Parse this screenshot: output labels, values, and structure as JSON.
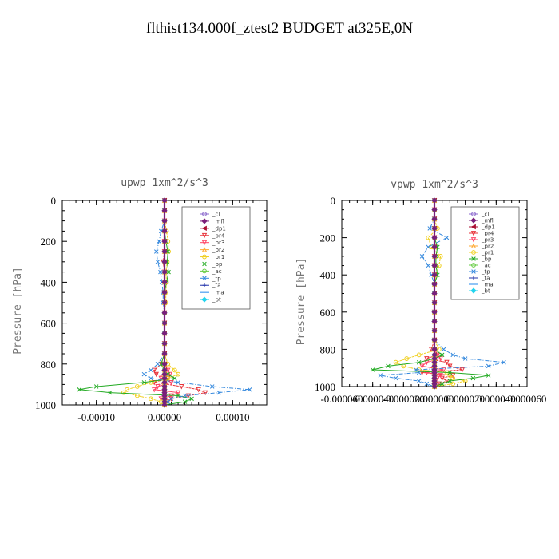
{
  "title": "flthist134.000f_ztest2  BUDGET at325E,0N",
  "chart_data": [
    {
      "type": "line",
      "title": "upwp   1xm^2/s^3",
      "ylabel": "Pressure [hPa]",
      "xlabel": "",
      "xlim": [
        -0.00015,
        0.00015
      ],
      "ylim": [
        1000,
        0
      ],
      "yticks": [
        0,
        200,
        400,
        600,
        800,
        1000
      ],
      "xticks": [
        -0.0001,
        0.0,
        0.0001
      ],
      "xtick_labels": [
        "-0.00010",
        "0.00000",
        "0.00010"
      ],
      "legend_position": "top-right",
      "pressure": [
        0,
        50,
        100,
        150,
        200,
        250,
        300,
        350,
        400,
        450,
        500,
        550,
        600,
        650,
        700,
        750,
        800,
        830,
        850,
        870,
        890,
        910,
        925,
        940,
        955,
        970,
        985,
        1000
      ],
      "series": [
        {
          "name": "_cl",
          "color": "#8866cc",
          "values": [
            0,
            0,
            0,
            0,
            0,
            0,
            0,
            0,
            0,
            0,
            0,
            0,
            0,
            0,
            0,
            0,
            0,
            0,
            0,
            0,
            0,
            0,
            0,
            0,
            0,
            0,
            0,
            0
          ]
        },
        {
          "name": "_mfl",
          "color": "#7a1f7a",
          "values": [
            0,
            0,
            0,
            0,
            0,
            0,
            0,
            0,
            0,
            0,
            0,
            0,
            0,
            0,
            0,
            0,
            0,
            0,
            0,
            0,
            0,
            0,
            0,
            0,
            0,
            0,
            0,
            0
          ]
        },
        {
          "name": "_dp1",
          "color": "#aa1133",
          "values": [
            0,
            0,
            0,
            0,
            0,
            0,
            0,
            0,
            0,
            0,
            0,
            0,
            0,
            0,
            0,
            0,
            0,
            0,
            0,
            0,
            0,
            0,
            0,
            0,
            0,
            0,
            0,
            0
          ]
        },
        {
          "name": "_pr4",
          "color": "#e8333a",
          "values": [
            0,
            0,
            0,
            0,
            0,
            0,
            -2e-06,
            0,
            0,
            0,
            0,
            0,
            0,
            0,
            0,
            0,
            -5e-06,
            -1.5e-05,
            -1.2e-05,
            5e-06,
            -1.5e-05,
            2.5e-05,
            5e-05,
            6e-05,
            3.5e-05,
            1e-05,
            5e-06,
            0
          ]
        },
        {
          "name": "_pr3",
          "color": "#ff4466",
          "values": [
            0,
            0,
            0,
            0,
            0,
            0,
            0,
            0,
            0,
            0,
            0,
            0,
            0,
            0,
            0,
            0,
            0,
            5e-06,
            8e-06,
            -5e-06,
            1e-05,
            -1e-05,
            -1.5e-05,
            2e-05,
            1e-05,
            -5e-06,
            0,
            0
          ]
        },
        {
          "name": "_pr2",
          "color": "#ffaa33",
          "values": [
            0,
            0,
            0,
            0,
            0,
            0,
            0,
            0,
            0,
            0,
            0,
            0,
            0,
            0,
            0,
            0,
            0,
            0,
            0,
            0,
            0,
            0,
            0,
            0,
            0,
            0,
            0,
            0
          ]
        },
        {
          "name": "_pr1",
          "color": "#f0d020",
          "values": [
            0,
            0,
            0,
            3e-06,
            5e-06,
            6e-06,
            4e-06,
            2e-06,
            3e-06,
            2e-06,
            2e-06,
            0,
            0,
            0,
            0,
            0,
            5e-06,
            1.5e-05,
            2e-05,
            5e-06,
            -2e-05,
            -4e-05,
            -5.5e-05,
            -6e-05,
            -4e-05,
            -2e-05,
            -5e-06,
            0
          ]
        },
        {
          "name": "_bp",
          "color": "#22aa22",
          "values": [
            0,
            0,
            0,
            0,
            2e-06,
            5e-06,
            4e-06,
            6e-06,
            3e-06,
            0,
            0,
            0,
            0,
            0,
            0,
            0,
            -5e-06,
            0,
            5e-06,
            1.5e-05,
            -3e-05,
            -0.0001,
            -0.000125,
            -8e-05,
            2e-05,
            4e-05,
            3e-05,
            0
          ]
        },
        {
          "name": "_ac",
          "color": "#66cc44",
          "values": [
            0,
            0,
            0,
            0,
            0,
            0,
            0,
            0,
            0,
            0,
            0,
            0,
            0,
            0,
            0,
            0,
            0,
            0,
            0,
            0,
            0,
            0,
            0,
            0,
            0,
            0,
            0,
            0
          ]
        },
        {
          "name": "_tp",
          "color": "#3388dd",
          "values": [
            0,
            0,
            0,
            -5e-06,
            -8e-06,
            -1.2e-05,
            -1e-05,
            -6e-06,
            -4e-06,
            -2e-06,
            -2e-06,
            0,
            0,
            0,
            0,
            0,
            -1e-05,
            -2e-05,
            -3e-05,
            -2e-05,
            2e-05,
            7e-05,
            0.000125,
            8e-05,
            3e-05,
            1e-05,
            5e-06,
            0
          ]
        },
        {
          "name": "_ta",
          "color": "#2233aa",
          "values": [
            0,
            0,
            0,
            0,
            0,
            0,
            0,
            0,
            0,
            0,
            0,
            0,
            0,
            0,
            0,
            0,
            0,
            0,
            0,
            0,
            0,
            0,
            0,
            0,
            0,
            0,
            0,
            0
          ]
        },
        {
          "name": "_ma",
          "color": "#2288ee",
          "values": [
            0,
            0,
            0,
            0,
            0,
            0,
            0,
            0,
            0,
            0,
            0,
            0,
            0,
            0,
            0,
            0,
            0,
            0,
            0,
            0,
            0,
            0,
            0,
            0,
            0,
            0,
            0,
            0
          ]
        },
        {
          "name": "_bt",
          "color": "#22d4ee",
          "values": [
            0,
            0,
            0,
            0,
            0,
            0,
            0,
            0,
            0,
            0,
            0,
            0,
            0,
            0,
            0,
            0,
            0,
            0,
            0,
            0,
            0,
            0,
            0,
            0,
            0,
            0,
            0,
            0
          ]
        }
      ]
    },
    {
      "type": "line",
      "title": "vpwp   1xm^2/s^3",
      "ylabel": "Pressure [hPa]",
      "xlabel": "",
      "xlim": [
        -6e-05,
        6e-05
      ],
      "ylim": [
        1000,
        0
      ],
      "yticks": [
        0,
        200,
        400,
        600,
        800,
        1000
      ],
      "xticks": [
        -6e-05,
        -4e-05,
        -2e-05,
        0.0,
        2e-05,
        4e-05,
        6e-05
      ],
      "xtick_labels": [
        "-0.000060",
        "-0.000040",
        "-0.000020",
        "0.000000",
        "0.000020",
        "0.000040",
        "0.000060"
      ],
      "legend_position": "top-right",
      "pressure": [
        0,
        50,
        100,
        150,
        200,
        250,
        300,
        350,
        400,
        450,
        500,
        550,
        600,
        650,
        700,
        750,
        800,
        830,
        850,
        870,
        890,
        910,
        925,
        940,
        955,
        970,
        985,
        1000
      ],
      "series": [
        {
          "name": "_cl",
          "color": "#8866cc",
          "values": [
            0,
            0,
            0,
            0,
            0,
            0,
            0,
            0,
            0,
            0,
            0,
            0,
            0,
            0,
            0,
            0,
            0,
            0,
            0,
            0,
            0,
            0,
            0,
            0,
            0,
            0,
            0,
            0
          ]
        },
        {
          "name": "_mfl",
          "color": "#7a1f7a",
          "values": [
            0,
            0,
            0,
            0,
            0,
            0,
            0,
            0,
            0,
            0,
            0,
            0,
            0,
            0,
            0,
            0,
            0,
            0,
            0,
            0,
            0,
            0,
            0,
            0,
            0,
            0,
            0,
            0
          ]
        },
        {
          "name": "_dp1",
          "color": "#aa1133",
          "values": [
            0,
            0,
            0,
            0,
            0,
            0,
            0,
            0,
            0,
            0,
            0,
            0,
            0,
            0,
            0,
            0,
            0,
            0,
            0,
            0,
            0,
            0,
            0,
            0,
            0,
            0,
            0,
            0
          ]
        },
        {
          "name": "_pr4",
          "color": "#e8333a",
          "values": [
            0,
            0,
            0,
            0,
            0,
            0,
            0,
            0,
            0,
            0,
            0,
            0,
            0,
            0,
            0,
            0,
            -2e-06,
            2e-06,
            -5e-06,
            8e-06,
            1e-05,
            1.8e-05,
            -8e-06,
            1.2e-05,
            5e-06,
            8e-06,
            3e-06,
            0
          ]
        },
        {
          "name": "_pr3",
          "color": "#ff4466",
          "values": [
            0,
            0,
            0,
            0,
            0,
            0,
            0,
            0,
            0,
            0,
            0,
            0,
            0,
            0,
            0,
            0,
            0,
            2e-06,
            4e-06,
            -5e-06,
            -8e-06,
            6e-06,
            -5e-06,
            4e-06,
            2e-06,
            0,
            0,
            0
          ]
        },
        {
          "name": "_pr2",
          "color": "#ffaa33",
          "values": [
            0,
            0,
            0,
            0,
            0,
            0,
            0,
            0,
            0,
            0,
            0,
            0,
            0,
            0,
            0,
            0,
            0,
            0,
            0,
            0,
            0,
            0,
            0,
            0,
            0,
            0,
            0,
            0
          ]
        },
        {
          "name": "_pr1",
          "color": "#f0d020",
          "values": [
            0,
            0,
            0,
            2e-06,
            -4e-06,
            -2e-06,
            4e-06,
            3e-06,
            1e-06,
            0,
            0,
            0,
            0,
            0,
            0,
            0,
            3e-06,
            -1e-05,
            -1.8e-05,
            -2.5e-05,
            -2e-05,
            -1e-05,
            8e-06,
            1e-05,
            1.2e-05,
            2e-05,
            1.2e-05,
            0
          ]
        },
        {
          "name": "_bp",
          "color": "#22aa22",
          "values": [
            0,
            0,
            0,
            0,
            0,
            2e-06,
            1e-06,
            1e-06,
            2e-06,
            0,
            0,
            0,
            0,
            0,
            0,
            0,
            0,
            5e-06,
            0,
            -1e-05,
            -3e-05,
            -4e-05,
            1e-05,
            3.5e-05,
            2.5e-05,
            1e-05,
            5e-06,
            0
          ]
        },
        {
          "name": "_ac",
          "color": "#66cc44",
          "values": [
            0,
            0,
            0,
            0,
            0,
            0,
            0,
            0,
            0,
            0,
            0,
            0,
            0,
            0,
            0,
            0,
            0,
            0,
            0,
            0,
            0,
            0,
            0,
            0,
            0,
            0,
            0,
            0
          ]
        },
        {
          "name": "_tp",
          "color": "#3388dd",
          "values": [
            0,
            0,
            0,
            -3e-06,
            8e-06,
            -4e-06,
            -8e-06,
            -4e-06,
            -2e-06,
            0,
            0,
            0,
            0,
            0,
            0,
            0,
            6e-06,
            1.2e-05,
            2e-05,
            4.5e-05,
            3.5e-05,
            -1.2e-05,
            -1e-05,
            -3.5e-05,
            -2.5e-05,
            -1e-05,
            -5e-06,
            0
          ]
        },
        {
          "name": "_ta",
          "color": "#2233aa",
          "values": [
            0,
            0,
            0,
            0,
            0,
            0,
            0,
            0,
            0,
            0,
            0,
            0,
            0,
            0,
            0,
            0,
            0,
            0,
            0,
            0,
            0,
            0,
            0,
            0,
            0,
            0,
            0,
            0
          ]
        },
        {
          "name": "_ma",
          "color": "#2288ee",
          "values": [
            0,
            0,
            0,
            0,
            0,
            0,
            0,
            0,
            0,
            0,
            0,
            0,
            0,
            0,
            0,
            0,
            0,
            0,
            0,
            0,
            0,
            0,
            0,
            0,
            0,
            0,
            0,
            0
          ]
        },
        {
          "name": "_bt",
          "color": "#22d4ee",
          "values": [
            0,
            0,
            0,
            0,
            0,
            0,
            0,
            0,
            0,
            0,
            0,
            0,
            0,
            0,
            0,
            0,
            0,
            0,
            0,
            0,
            0,
            0,
            0,
            0,
            0,
            0,
            0,
            0
          ]
        }
      ]
    }
  ]
}
